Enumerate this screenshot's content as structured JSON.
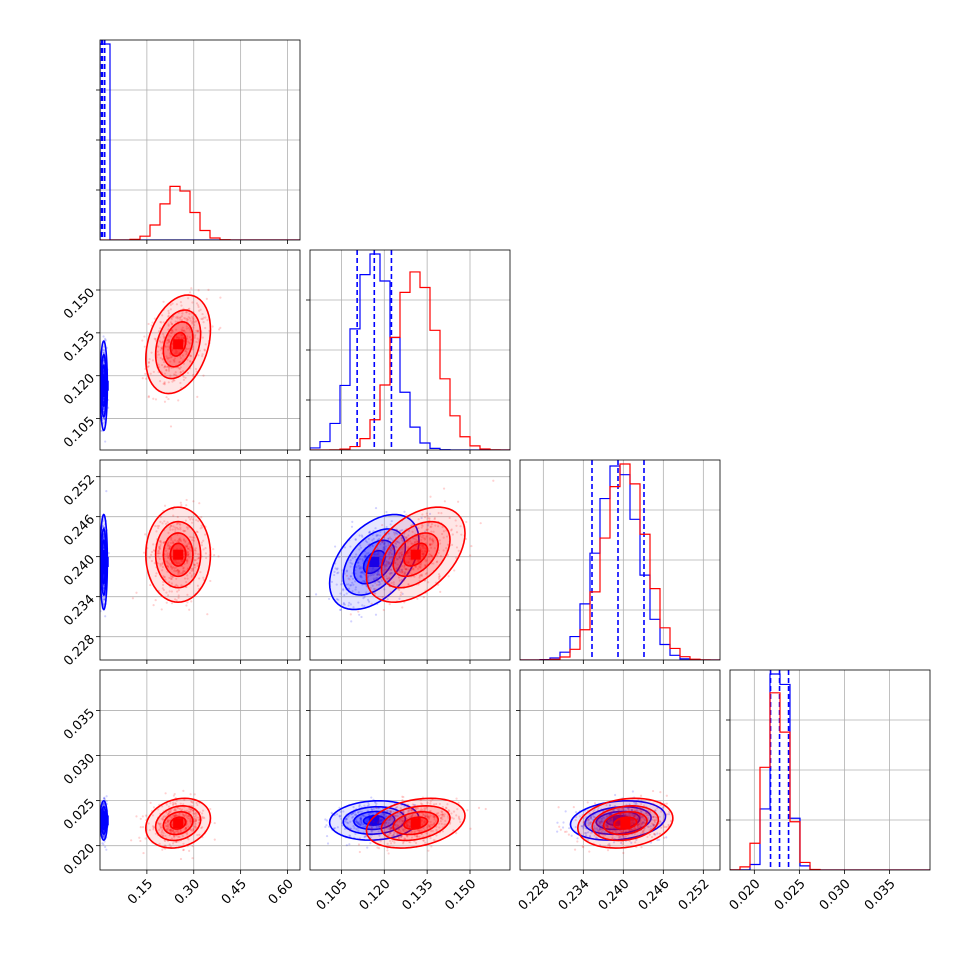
{
  "chart_data": {
    "type": "corner",
    "params": [
      {
        "range": [
          0.0,
          0.64
        ],
        "ticks": [
          0.15,
          0.3,
          0.45,
          0.6
        ],
        "tick_labels": [
          "0.15",
          "0.30",
          "0.45",
          "0.60"
        ]
      },
      {
        "range": [
          0.094,
          0.164
        ],
        "ticks": [
          0.105,
          0.12,
          0.135,
          0.15
        ],
        "tick_labels": [
          "0.105",
          "0.120",
          "0.135",
          "0.150"
        ]
      },
      {
        "range": [
          0.2245,
          0.2545
        ],
        "ticks": [
          0.228,
          0.234,
          0.24,
          0.246,
          0.252
        ],
        "tick_labels": [
          "0.228",
          "0.234",
          "0.240",
          "0.246",
          "0.252"
        ]
      },
      {
        "range": [
          0.0173,
          0.0395
        ],
        "ticks": [
          0.02,
          0.025,
          0.03,
          0.035
        ],
        "tick_labels": [
          "0.020",
          "0.025",
          "0.030",
          "0.035"
        ]
      }
    ],
    "series": [
      {
        "color": "#0000ff",
        "means": [
          0.012,
          0.1165,
          0.2392,
          0.0228
        ],
        "sds": [
          0.005,
          0.0068,
          0.0031,
          0.00095
        ],
        "correlations": [
          [
            0,
            1,
            0.0
          ],
          [
            0,
            2,
            0.0
          ],
          [
            0,
            3,
            0.0
          ],
          [
            1,
            2,
            0.45
          ],
          [
            1,
            3,
            0.1
          ],
          [
            2,
            3,
            0.2
          ]
        ],
        "quantile_lines": [
          [
            0.005,
            0.008,
            0.015
          ],
          [
            0.1105,
            0.1165,
            0.1225
          ],
          [
            0.2353,
            0.2392,
            0.2431
          ],
          [
            0.0218,
            0.0228,
            0.0238
          ]
        ]
      },
      {
        "color": "#ff0000",
        "means": [
          0.25,
          0.131,
          0.2403,
          0.0225
        ],
        "sds": [
          0.045,
          0.0075,
          0.0031,
          0.0012
        ],
        "correlations": [
          [
            0,
            1,
            0.3
          ],
          [
            0,
            2,
            0.0
          ],
          [
            0,
            3,
            0.2
          ],
          [
            1,
            2,
            0.45
          ],
          [
            1,
            3,
            0.3
          ],
          [
            2,
            3,
            0.2
          ]
        ],
        "quantile_lines": []
      }
    ],
    "grid": true,
    "legend": "none"
  }
}
